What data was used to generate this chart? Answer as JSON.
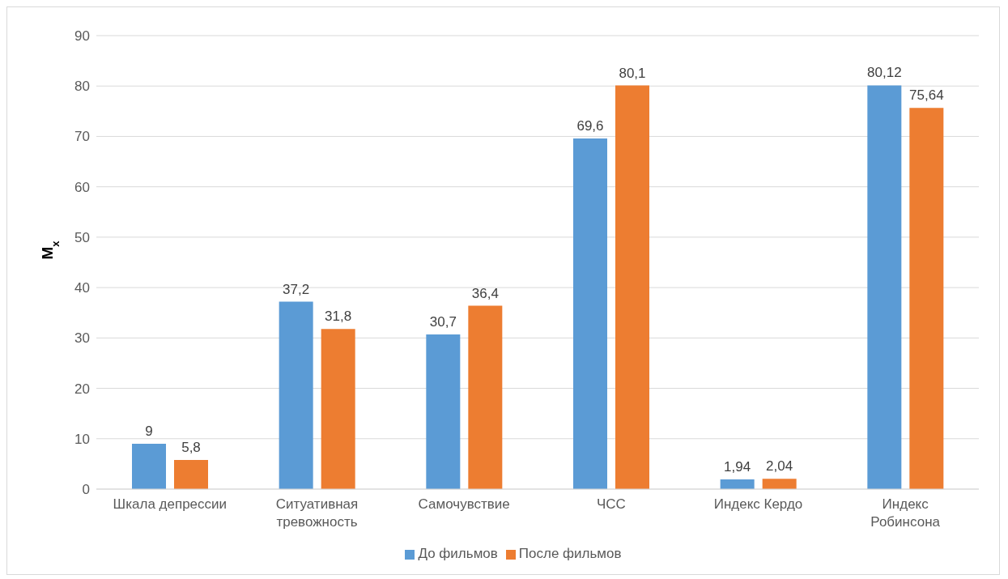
{
  "chart_data": {
    "type": "bar",
    "ylabel": "M$_{x}$",
    "categories": [
      "Шкала депрессии",
      "Ситуативная тревожность",
      "Самочувствие",
      "ЧСС",
      "Индекс Кердо",
      "Индекс Робинсона"
    ],
    "series": [
      {
        "name": "До фильмов",
        "color": "#5b9bd5",
        "values": [
          9,
          37.2,
          30.7,
          69.6,
          1.94,
          80.12
        ],
        "value_labels": [
          "9",
          "37,2",
          "30,7",
          "69,6",
          "1,94",
          "80,12"
        ]
      },
      {
        "name": "После фильмов",
        "color": "#ed7d31",
        "values": [
          5.8,
          31.8,
          36.4,
          80.1,
          2.04,
          75.64
        ],
        "value_labels": [
          "5,8",
          "31,8",
          "36,4",
          "80,1",
          "2,04",
          "75,64"
        ]
      }
    ],
    "ylim": [
      0,
      90
    ],
    "yticks": [
      0,
      10,
      20,
      30,
      40,
      50,
      60,
      70,
      80,
      90
    ],
    "grid": "y",
    "legend": "bottom"
  }
}
